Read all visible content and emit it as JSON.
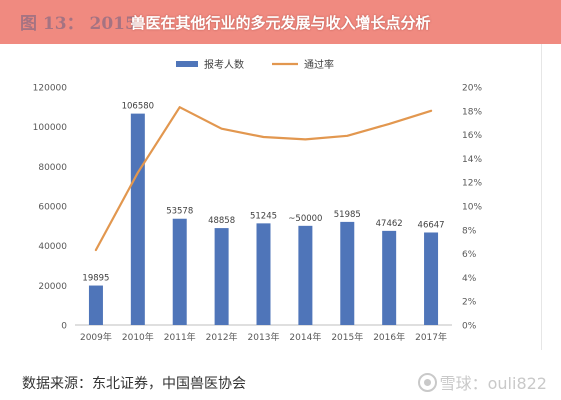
{
  "header": {
    "title": "兽医在其他行业的多元发展与收入增长点分析",
    "underlay": "图 13： 2015"
  },
  "chart_data": {
    "type": "bar",
    "categories": [
      "2009年",
      "2010年",
      "2011年",
      "2012年",
      "2013年",
      "2014年",
      "2015年",
      "2016年",
      "2017年"
    ],
    "series": [
      {
        "name": "报考人数",
        "type": "bar",
        "axis": "left",
        "color": "#4f75b9",
        "values": [
          19895,
          106580,
          53578,
          48858,
          51245,
          50000,
          51985,
          47462,
          46647
        ],
        "labels": [
          "19895",
          "106580",
          "53578",
          "48858",
          "51245",
          "~50000",
          "51985",
          "47462",
          "46647"
        ]
      },
      {
        "name": "通过率",
        "type": "line",
        "axis": "right",
        "color": "#e2974f",
        "values": [
          6.3,
          12.8,
          18.3,
          16.5,
          15.8,
          15.6,
          15.9,
          16.9,
          18.0
        ]
      }
    ],
    "y_left": {
      "min": 0,
      "max": 120000,
      "ticks": [
        0,
        20000,
        40000,
        60000,
        80000,
        100000,
        120000
      ],
      "tick_labels": [
        "0",
        "20000",
        "40000",
        "60000",
        "80000",
        "100000",
        "120000"
      ]
    },
    "y_right": {
      "min": 0,
      "max": 20,
      "ticks": [
        0,
        2,
        4,
        6,
        8,
        10,
        12,
        14,
        16,
        18,
        20
      ],
      "tick_labels": [
        "0%",
        "2%",
        "4%",
        "6%",
        "8%",
        "10%",
        "12%",
        "14%",
        "16%",
        "18%",
        "20%"
      ]
    },
    "legend_position": "top-center",
    "grid": false
  },
  "footer": {
    "source": "数据来源：东北证券，中国兽医协会",
    "watermark": "雪球：ouli822"
  }
}
